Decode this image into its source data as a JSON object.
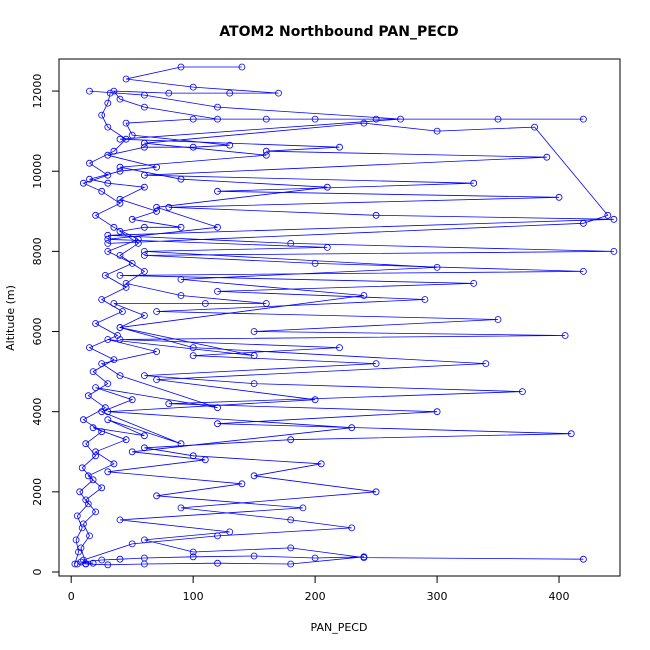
{
  "chart_data": {
    "type": "line",
    "title": "ATOM2 Northbound PAN_PECD",
    "xlabel": "PAN_PECD",
    "ylabel": "Altitude (m)",
    "xlim": [
      -10,
      450
    ],
    "ylim": [
      -100,
      12800
    ],
    "x_ticks": [
      0,
      100,
      200,
      300,
      400
    ],
    "y_ticks": [
      0,
      2000,
      4000,
      6000,
      8000,
      10000,
      12000
    ],
    "grid": false,
    "legend": "none",
    "color": "#0000ff",
    "series": [
      {
        "points": [
          [
            5,
            200
          ],
          [
            12,
            210
          ],
          [
            18,
            220
          ],
          [
            8,
            250
          ],
          [
            25,
            300
          ],
          [
            40,
            320
          ],
          [
            60,
            350
          ],
          [
            100,
            380
          ],
          [
            150,
            400
          ],
          [
            200,
            350
          ],
          [
            240,
            380
          ],
          [
            180,
            200
          ],
          [
            120,
            220
          ],
          [
            60,
            200
          ],
          [
            30,
            180
          ],
          [
            12,
            200
          ],
          [
            8,
            600
          ],
          [
            15,
            900
          ],
          [
            10,
            1200
          ],
          [
            20,
            1500
          ],
          [
            12,
            1800
          ],
          [
            25,
            2100
          ],
          [
            14,
            2400
          ],
          [
            35,
            2700
          ],
          [
            20,
            3000
          ],
          [
            45,
            3300
          ],
          [
            18,
            3600
          ],
          [
            60,
            3400
          ],
          [
            30,
            3800
          ],
          [
            90,
            3200
          ],
          [
            25,
            4000
          ],
          [
            50,
            4300
          ],
          [
            20,
            4600
          ],
          [
            120,
            4100
          ],
          [
            40,
            4900
          ],
          [
            25,
            5200
          ],
          [
            70,
            5500
          ],
          [
            30,
            5800
          ],
          [
            150,
            5400
          ],
          [
            40,
            6100
          ],
          [
            60,
            6400
          ],
          [
            35,
            6700
          ],
          [
            110,
            6700
          ],
          [
            160,
            6700
          ],
          [
            90,
            6900
          ],
          [
            45,
            7200
          ],
          [
            60,
            7500
          ],
          [
            40,
            7900
          ],
          [
            55,
            8200
          ],
          [
            40,
            8500
          ],
          [
            60,
            8600
          ],
          [
            90,
            8600
          ],
          [
            50,
            8800
          ],
          [
            70,
            9000
          ],
          [
            40,
            9300
          ],
          [
            60,
            9600
          ],
          [
            30,
            9700
          ],
          [
            15,
            9800
          ],
          [
            40,
            10000
          ],
          [
            70,
            10100
          ],
          [
            30,
            10400
          ],
          [
            60,
            10600
          ],
          [
            100,
            10600
          ],
          [
            130,
            10650
          ],
          [
            50,
            10900
          ],
          [
            45,
            11200
          ],
          [
            100,
            11300
          ],
          [
            160,
            11300
          ],
          [
            250,
            11300
          ],
          [
            350,
            11300
          ],
          [
            420,
            11300
          ],
          [
            200,
            11300
          ],
          [
            120,
            11300
          ],
          [
            60,
            11600
          ],
          [
            40,
            11800
          ],
          [
            35,
            12000
          ],
          [
            80,
            11950
          ],
          [
            130,
            11950
          ],
          [
            170,
            11950
          ],
          [
            100,
            12100
          ],
          [
            45,
            12300
          ],
          [
            90,
            12600
          ],
          [
            140,
            12600
          ]
        ]
      },
      {
        "points": [
          [
            10,
            300
          ],
          [
            50,
            700
          ],
          [
            120,
            900
          ],
          [
            230,
            1100
          ],
          [
            180,
            1300
          ],
          [
            90,
            1600
          ],
          [
            250,
            2000
          ],
          [
            150,
            2400
          ],
          [
            205,
            2700
          ],
          [
            100,
            2900
          ],
          [
            60,
            3100
          ],
          [
            180,
            3300
          ],
          [
            410,
            3450
          ],
          [
            120,
            3700
          ],
          [
            300,
            4000
          ],
          [
            80,
            4200
          ],
          [
            370,
            4500
          ],
          [
            150,
            4700
          ],
          [
            60,
            4900
          ],
          [
            250,
            5200
          ],
          [
            100,
            5400
          ],
          [
            220,
            5600
          ],
          [
            40,
            5800
          ],
          [
            405,
            5900
          ],
          [
            150,
            6000
          ],
          [
            350,
            6300
          ],
          [
            70,
            6500
          ],
          [
            290,
            6800
          ],
          [
            120,
            7000
          ],
          [
            330,
            7200
          ],
          [
            40,
            7400
          ],
          [
            420,
            7500
          ],
          [
            200,
            7700
          ],
          [
            60,
            7900
          ],
          [
            445,
            8000
          ],
          [
            180,
            8200
          ],
          [
            30,
            8400
          ],
          [
            445,
            8800
          ],
          [
            250,
            8900
          ],
          [
            80,
            9100
          ],
          [
            400,
            9350
          ],
          [
            120,
            9500
          ],
          [
            330,
            9700
          ],
          [
            60,
            9900
          ],
          [
            390,
            10350
          ],
          [
            160,
            10500
          ],
          [
            220,
            10600
          ],
          [
            40,
            10800
          ],
          [
            270,
            11300
          ],
          [
            120,
            11600
          ],
          [
            60,
            11900
          ],
          [
            15,
            12000
          ]
        ]
      },
      {
        "points": [
          [
            3,
            200
          ],
          [
            6,
            500
          ],
          [
            4,
            800
          ],
          [
            9,
            1100
          ],
          [
            5,
            1400
          ],
          [
            14,
            1700
          ],
          [
            7,
            2000
          ],
          [
            18,
            2300
          ],
          [
            9,
            2600
          ],
          [
            20,
            2900
          ],
          [
            12,
            3200
          ],
          [
            25,
            3500
          ],
          [
            10,
            3800
          ],
          [
            28,
            4100
          ],
          [
            14,
            4400
          ],
          [
            30,
            4700
          ],
          [
            18,
            5000
          ],
          [
            35,
            5300
          ],
          [
            15,
            5600
          ],
          [
            38,
            5900
          ],
          [
            20,
            6200
          ],
          [
            42,
            6500
          ],
          [
            25,
            6800
          ],
          [
            45,
            7100
          ],
          [
            28,
            7400
          ],
          [
            50,
            7700
          ],
          [
            30,
            8000
          ],
          [
            55,
            8300
          ],
          [
            35,
            8600
          ],
          [
            20,
            8900
          ],
          [
            40,
            9200
          ],
          [
            25,
            9500
          ],
          [
            10,
            9700
          ],
          [
            30,
            9900
          ],
          [
            15,
            10200
          ],
          [
            35,
            10500
          ],
          [
            45,
            10800
          ],
          [
            30,
            11100
          ],
          [
            25,
            11400
          ],
          [
            30,
            11700
          ],
          [
            32,
            11950
          ]
        ]
      },
      {
        "points": [
          [
            420,
            320
          ],
          [
            240,
            360
          ],
          [
            180,
            600
          ],
          [
            100,
            500
          ],
          [
            60,
            800
          ],
          [
            130,
            1000
          ],
          [
            40,
            1300
          ],
          [
            190,
            1600
          ],
          [
            70,
            1900
          ],
          [
            140,
            2200
          ],
          [
            30,
            2500
          ],
          [
            110,
            2800
          ],
          [
            50,
            3000
          ],
          [
            230,
            3600
          ],
          [
            30,
            4000
          ],
          [
            200,
            4300
          ],
          [
            70,
            4800
          ],
          [
            340,
            5200
          ],
          [
            100,
            5600
          ],
          [
            40,
            6100
          ],
          [
            240,
            6900
          ],
          [
            90,
            7300
          ],
          [
            300,
            7600
          ],
          [
            60,
            8000
          ],
          [
            210,
            8100
          ],
          [
            30,
            8300
          ],
          [
            120,
            8600
          ],
          [
            70,
            9100
          ],
          [
            210,
            9600
          ],
          [
            90,
            9800
          ],
          [
            40,
            10100
          ],
          [
            160,
            10400
          ],
          [
            60,
            10700
          ],
          [
            240,
            11200
          ],
          [
            300,
            11000
          ],
          [
            380,
            11100
          ],
          [
            440,
            8900
          ],
          [
            420,
            8700
          ],
          [
            30,
            8200
          ]
        ]
      }
    ]
  }
}
